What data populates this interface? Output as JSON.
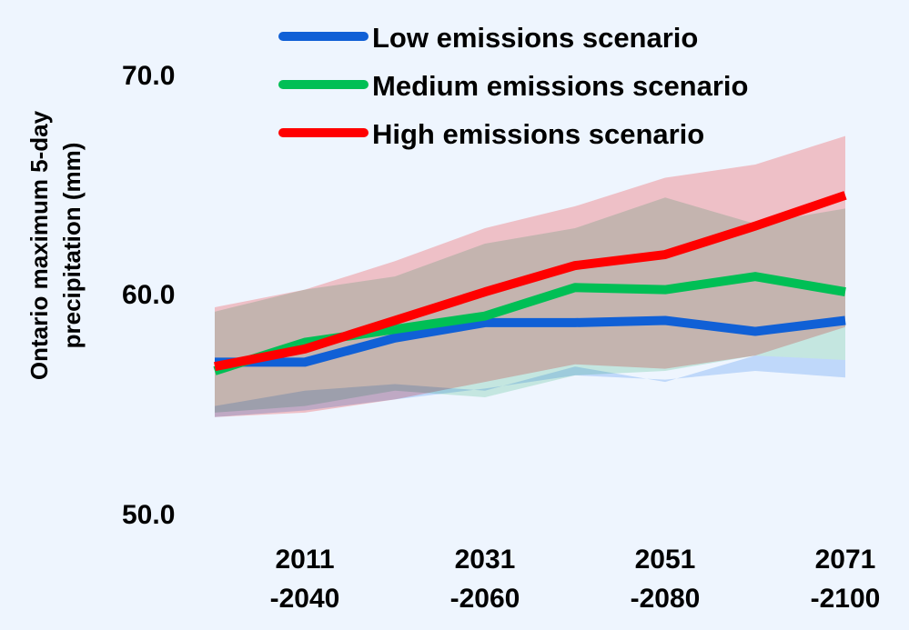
{
  "chart_data": {
    "type": "line",
    "title": "",
    "xlabel": "",
    "ylabel": [
      "Ontario maximum 5-day",
      "precipitation (mm)"
    ],
    "ylim": [
      50,
      70
    ],
    "yticks": [
      "70.0",
      "60.0",
      "50.0"
    ],
    "ytick_values": [
      70,
      60,
      50
    ],
    "grid": false,
    "legend_position": "top",
    "x": [
      0,
      1,
      2,
      3,
      4,
      5,
      6,
      7
    ],
    "xtick_positions": [
      1,
      3,
      5,
      7
    ],
    "xtick_labels": [
      [
        "2011",
        "-2040"
      ],
      [
        "2031",
        "-2060"
      ],
      [
        "2051",
        "-2080"
      ],
      [
        "2071",
        "-2100"
      ]
    ],
    "series": [
      {
        "name": "Low emissions scenario",
        "color": "#1060d6",
        "band_color": "#bcd7fa",
        "values": [
          56.9,
          56.9,
          58.0,
          58.7,
          58.7,
          58.8,
          58.3,
          58.8
        ],
        "band_lower": [
          54.4,
          54.7,
          55.2,
          55.7,
          56.3,
          56.1,
          56.5,
          56.2
        ],
        "band_upper": [
          54.9,
          55.6,
          55.9,
          55.6,
          56.7,
          56.0,
          57.2,
          57.0
        ]
      },
      {
        "name": "Medium emissions scenario",
        "color": "#00bf55",
        "band_color": "#c3ebd7",
        "values": [
          56.5,
          57.8,
          58.4,
          59.0,
          60.3,
          60.2,
          60.8,
          60.1
        ],
        "band_lower": [
          54.6,
          54.9,
          55.6,
          55.3,
          56.3,
          56.5,
          57.2,
          57.0
        ],
        "band_upper": [
          59.2,
          60.2,
          60.8,
          62.3,
          63.0,
          64.4,
          63.2,
          63.9
        ]
      },
      {
        "name": "High emissions scenario",
        "color": "#ff0000",
        "band_color": "#ffc8c8",
        "values": [
          56.7,
          57.5,
          58.8,
          60.1,
          61.3,
          61.8,
          63.1,
          64.5
        ],
        "band_lower": [
          54.4,
          54.6,
          55.2,
          56.0,
          56.8,
          56.6,
          57.2,
          58.5
        ],
        "band_upper": [
          59.4,
          60.2,
          61.5,
          63.0,
          64.0,
          65.3,
          65.9,
          67.2
        ]
      }
    ]
  }
}
